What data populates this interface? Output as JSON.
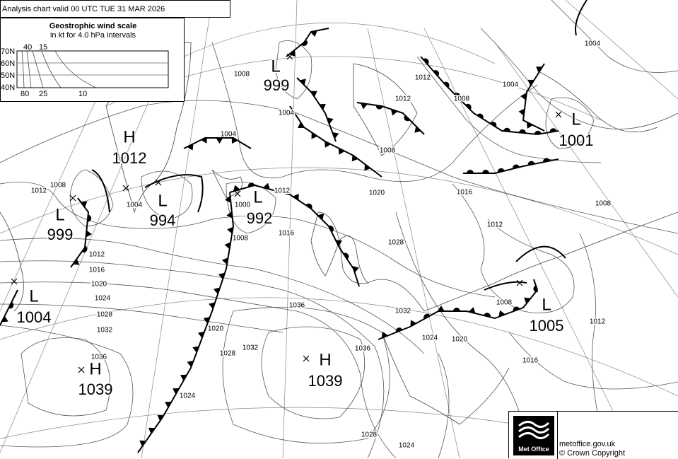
{
  "header": {
    "title": "Analysis chart  valid 00 UTC TUE 31  MAR 2026"
  },
  "wind_scale": {
    "title": "Geostrophic wind scale",
    "subtitle": "in kt for 4.0 hPa intervals",
    "top_labels": [
      "40",
      "15"
    ],
    "bottom_labels": [
      "80",
      "25",
      "10"
    ],
    "latitudes": [
      "70N",
      "60N",
      "50N",
      "40N"
    ]
  },
  "pressure_centres": [
    {
      "type": "L",
      "value": "999"
    },
    {
      "type": "L",
      "value": "1001"
    },
    {
      "type": "H",
      "value": "1012"
    },
    {
      "type": "L",
      "value": "994"
    },
    {
      "type": "L",
      "value": "992"
    },
    {
      "type": "L",
      "value": "999"
    },
    {
      "type": "L",
      "value": "1004"
    },
    {
      "type": "L",
      "value": "1005"
    },
    {
      "type": "H",
      "value": "1039"
    },
    {
      "type": "H",
      "value": "1039"
    }
  ],
  "isobar_labels": [
    "1004",
    "1008",
    "1004",
    "1012",
    "1004",
    "1008",
    "1012",
    "1004",
    "1008",
    "1016",
    "1020",
    "1008",
    "1012",
    "1028",
    "1012",
    "1008",
    "1004",
    "1000",
    "1012",
    "1016",
    "1008",
    "1012",
    "1016",
    "1020",
    "1024",
    "1028",
    "1032",
    "1036",
    "1036",
    "1032",
    "1024",
    "1020",
    "1008",
    "1012",
    "1016",
    "1020",
    "1028",
    "1032",
    "1024",
    "1028",
    "1024",
    "1036"
  ],
  "footer": {
    "brand": "Met Office",
    "site": "metoffice.gov.uk",
    "copyright": "© Crown Copyright"
  }
}
